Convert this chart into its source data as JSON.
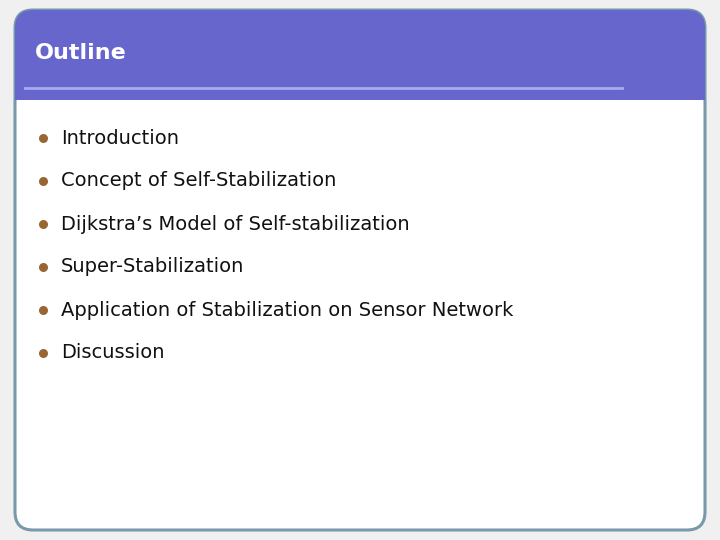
{
  "title": "Outline",
  "title_bg_color": "#6666cc",
  "title_text_color": "#ffffff",
  "title_fontsize": 16,
  "title_font_weight": "bold",
  "separator_color": "#aaaaee",
  "body_bg_color": "#ffffff",
  "border_color": "#7799aa",
  "bullet_color": "#996633",
  "bullet_items": [
    "Introduction",
    "Concept of Self-Stabilization",
    "Dijkstra’s Model of Self-stabilization",
    "Super-Stabilization",
    "Application of Stabilization on Sensor Network",
    "Discussion"
  ],
  "item_fontsize": 14,
  "item_text_color": "#111111",
  "outer_bg_color": "#f0f0f0",
  "fig_width": 7.2,
  "fig_height": 5.4,
  "dpi": 100
}
